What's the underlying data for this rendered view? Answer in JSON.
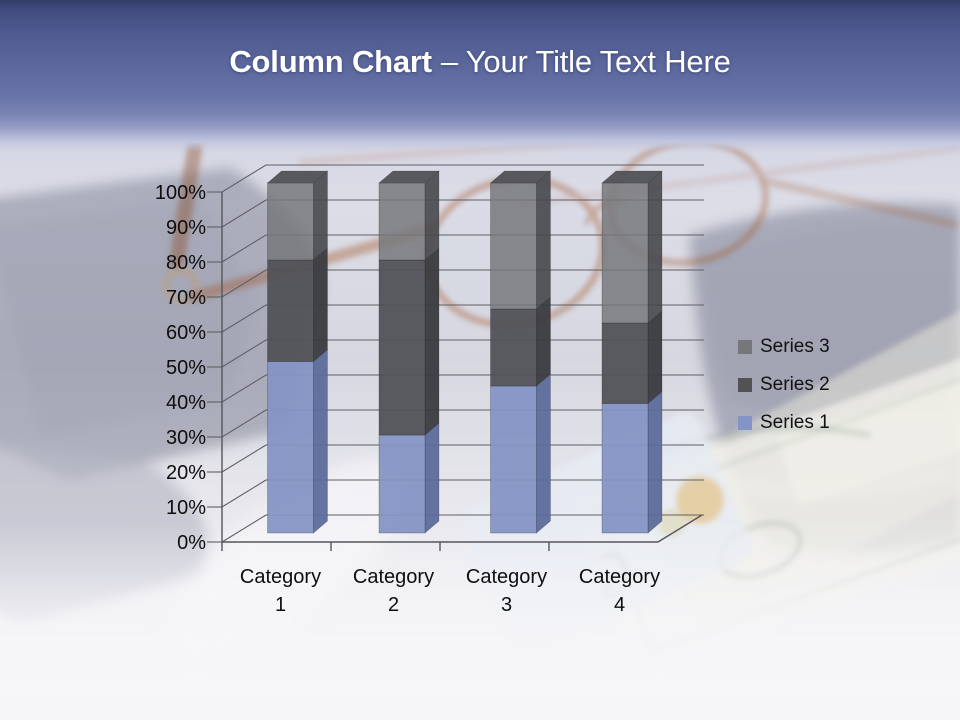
{
  "slide": {
    "title_bold": "Column Chart",
    "title_rest": "– Your Title Text Here"
  },
  "chart_data": {
    "type": "bar",
    "subtype": "3d-100-percent-stacked-column",
    "title": "",
    "categories": [
      "Category 1",
      "Category 2",
      "Category 3",
      "Category 4"
    ],
    "series": [
      {
        "name": "Series 1",
        "values": [
          49,
          28,
          42,
          37
        ],
        "color": "#8494c4",
        "color_side": "#5d6b9b",
        "color_top": "#6e7eae"
      },
      {
        "name": "Series 2",
        "values": [
          29,
          50,
          22,
          23
        ],
        "color": "#515256",
        "color_side": "#3a3b3f",
        "color_top": "#47484c"
      },
      {
        "name": "Series 3",
        "values": [
          22,
          22,
          36,
          40
        ],
        "color": "#76777b",
        "color_side": "#47484c",
        "color_top": "#525357"
      }
    ],
    "y_axis": {
      "min": 0,
      "max": 100,
      "step": 10,
      "unit": "%",
      "tick_labels": [
        "0%",
        "10%",
        "20%",
        "30%",
        "40%",
        "50%",
        "60%",
        "70%",
        "80%",
        "90%",
        "100%"
      ]
    },
    "legend": {
      "position": "right",
      "entries": [
        "Series 3",
        "Series 2",
        "Series 1"
      ]
    },
    "grid": true
  },
  "colors": {
    "header_gradient_top": "#39426e",
    "header_gradient_mid": "#6672a6",
    "header_fade": "#c9cde2",
    "title_text": "#ffffff",
    "axis_text": "#0e0e0e",
    "gridline": "#5f6066",
    "axis_line": "#55565a",
    "background_tint": "#d8d9e2"
  }
}
